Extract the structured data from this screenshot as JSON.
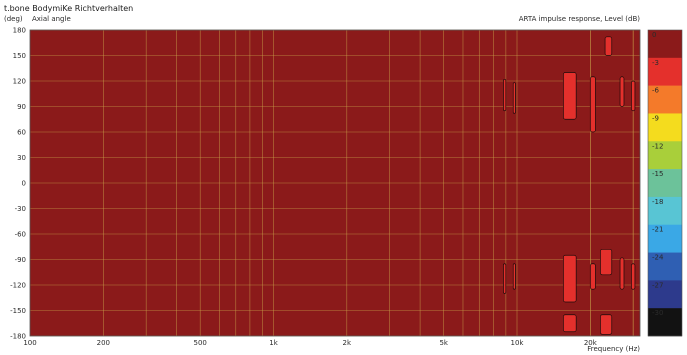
{
  "chart_data": {
    "type": "heatmap",
    "title": "t.bone BodymiKe Richtverhalten",
    "ylabel_unit": "(deg)",
    "ylabel": "Axial angle",
    "top_right_label": "ARTA impulse response, Level  (dB)",
    "xlabel": "Frequency  (Hz)",
    "x_scale": "log",
    "xlim": [
      100,
      32000
    ],
    "ylim": [
      -180,
      180
    ],
    "grid": true,
    "background_level_db": 0,
    "x_ticks": [
      {
        "value": 100,
        "label": "100"
      },
      {
        "value": 200,
        "label": "200"
      },
      {
        "value": 500,
        "label": "500"
      },
      {
        "value": 1000,
        "label": "1k"
      },
      {
        "value": 2000,
        "label": "2k"
      },
      {
        "value": 5000,
        "label": "5k"
      },
      {
        "value": 10000,
        "label": "10k"
      },
      {
        "value": 20000,
        "label": "20k"
      }
    ],
    "y_ticks": [
      180,
      150,
      120,
      90,
      60,
      30,
      0,
      -30,
      -60,
      -90,
      -120,
      -150,
      -180
    ],
    "colorbar": {
      "unit": "dB",
      "levels": [
        {
          "label": "0",
          "color": "#8b1a1a"
        },
        {
          "label": "-3",
          "color": "#e4302c"
        },
        {
          "label": "-6",
          "color": "#f47a2a"
        },
        {
          "label": "-9",
          "color": "#f4dc1e"
        },
        {
          "label": "-12",
          "color": "#a9cf3a"
        },
        {
          "label": "-15",
          "color": "#6cc29a"
        },
        {
          "label": "-18",
          "color": "#58c5d4"
        },
        {
          "label": "-21",
          "color": "#3aa8e6"
        },
        {
          "label": "-24",
          "color": "#2f5fb3"
        },
        {
          "label": "-27",
          "color": "#2d3a8c"
        },
        {
          "label": "-30",
          "color": "#121212"
        }
      ]
    },
    "contour_regions": [
      {
        "level_db": -3,
        "f_min": 8800,
        "f_max": 9000,
        "angle_min": 85,
        "angle_max": 122
      },
      {
        "level_db": -3,
        "f_min": 9650,
        "f_max": 9850,
        "angle_min": 82,
        "angle_max": 118
      },
      {
        "level_db": -3,
        "f_min": 15500,
        "f_max": 17500,
        "angle_min": 75,
        "angle_max": 130
      },
      {
        "level_db": -3,
        "f_min": 20000,
        "f_max": 21000,
        "angle_min": 60,
        "angle_max": 125
      },
      {
        "level_db": -3,
        "f_min": 23000,
        "f_max": 24500,
        "angle_min": 150,
        "angle_max": 172
      },
      {
        "level_db": -3,
        "f_min": 26500,
        "f_max": 27500,
        "angle_min": 90,
        "angle_max": 125
      },
      {
        "level_db": -3,
        "f_min": 29500,
        "f_max": 30500,
        "angle_min": 85,
        "angle_max": 120
      },
      {
        "level_db": -3,
        "f_min": 8800,
        "f_max": 9000,
        "angle_min": -130,
        "angle_max": -95
      },
      {
        "level_db": -3,
        "f_min": 9650,
        "f_max": 9850,
        "angle_min": -125,
        "angle_max": -95
      },
      {
        "level_db": -3,
        "f_min": 15500,
        "f_max": 17500,
        "angle_min": -140,
        "angle_max": -85
      },
      {
        "level_db": -3,
        "f_min": 20000,
        "f_max": 21000,
        "angle_min": -125,
        "angle_max": -95
      },
      {
        "level_db": -3,
        "f_min": 22000,
        "f_max": 24500,
        "angle_min": -108,
        "angle_max": -78
      },
      {
        "level_db": -3,
        "f_min": 26500,
        "f_max": 27500,
        "angle_min": -125,
        "angle_max": -88
      },
      {
        "level_db": -3,
        "f_min": 29500,
        "f_max": 30500,
        "angle_min": -125,
        "angle_max": -95
      },
      {
        "level_db": -3,
        "f_min": 15500,
        "f_max": 17500,
        "angle_min": -175,
        "angle_max": -155
      },
      {
        "level_db": -3,
        "f_min": 22000,
        "f_max": 24500,
        "angle_min": -178,
        "angle_max": -155
      }
    ]
  }
}
